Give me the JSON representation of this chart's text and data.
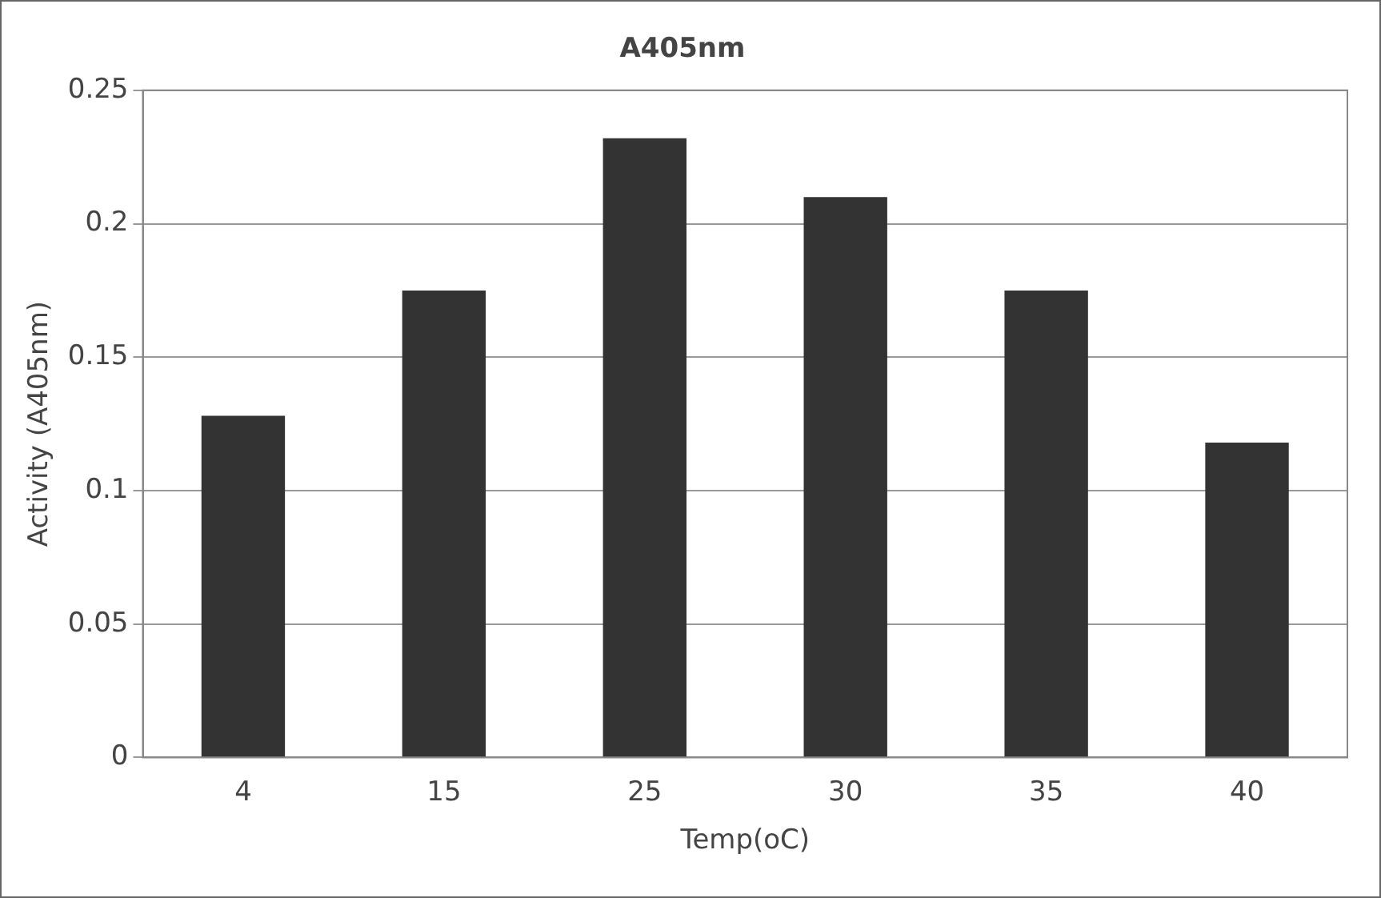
{
  "chart_data": {
    "type": "bar",
    "title": "A405nm",
    "xlabel": "Temp(oC)",
    "ylabel": "Activity (A405nm)",
    "categories": [
      "4",
      "15",
      "25",
      "30",
      "35",
      "40"
    ],
    "values": [
      0.128,
      0.175,
      0.232,
      0.21,
      0.175,
      0.118
    ],
    "color": "#333333",
    "ylim": [
      0,
      0.25
    ],
    "yticks": [
      0,
      0.05,
      0.1,
      0.15,
      0.2,
      0.25
    ],
    "grid": "y",
    "legend": false
  }
}
